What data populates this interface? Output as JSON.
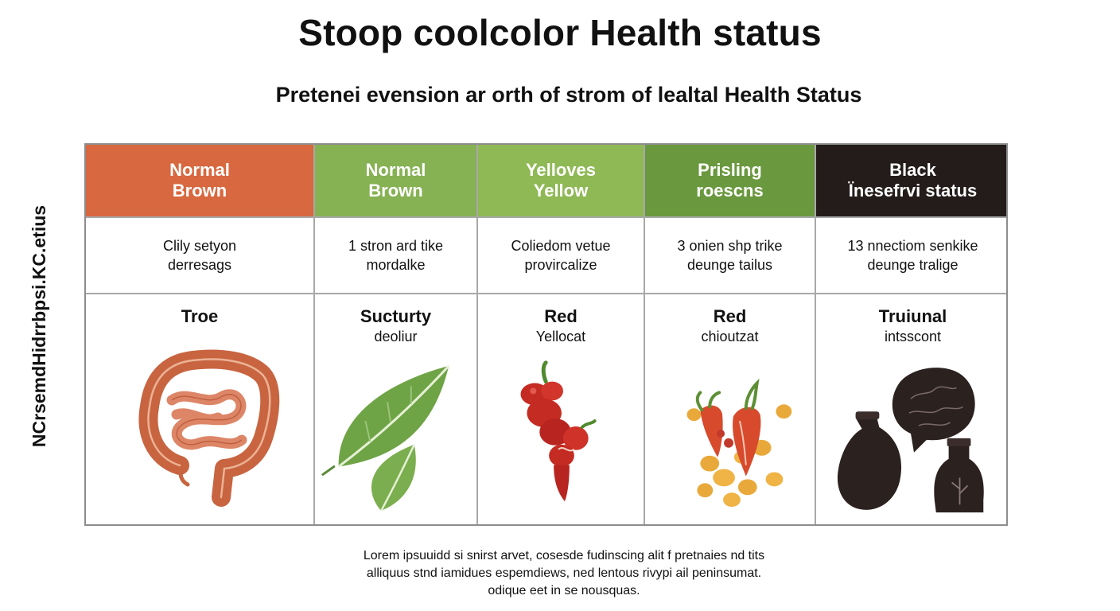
{
  "title": "Stoop coolcolor Health status",
  "subtitle": "Pretenei evension ar orth of strom of lealtal Health Status",
  "side_label": "NCrsemdHidrrbpsi.KC.etius",
  "columns": [
    {
      "header": [
        "Normal",
        "Brown"
      ],
      "header_color": "#d8683f",
      "description": [
        "Clily setyon",
        "derresags"
      ],
      "title_lines": [
        "Troe"
      ],
      "illustration": "intestine-icon"
    },
    {
      "header": [
        "Normal",
        "Brown"
      ],
      "header_color": "#86b253",
      "description": [
        "1 stron ard tike",
        "mordalke"
      ],
      "title_lines": [
        "Sucturty",
        "deoliur"
      ],
      "illustration": "leaf-icon"
    },
    {
      "header": [
        "Yelloves",
        "Yellow"
      ],
      "header_color": "#8fb955",
      "description": [
        "Coliedom vetue",
        "provircalize"
      ],
      "title_lines": [
        "Red",
        "Yellocat"
      ],
      "illustration": "red-pepper-icon"
    },
    {
      "header": [
        "Prisling",
        "roescns"
      ],
      "header_color": "#6a983e",
      "description": [
        "3 onien shp trike",
        "deunge tailus"
      ],
      "title_lines": [
        "Red",
        "chioutzat"
      ],
      "illustration": "vegetables-icon"
    },
    {
      "header": [
        "Black",
        "Ïnesefrvi status"
      ],
      "header_color": "#241c1b",
      "description": [
        "13 nnectiom senkike",
        "deunge tralige"
      ],
      "title_lines": [
        "Truiunal",
        "intsscont"
      ],
      "illustration": "dark-jars-icon"
    }
  ],
  "footer": [
    "Lorem ipsuuidd si snirst arvet, cosesde fudinscing alit f pretnaies nd tits",
    "alliquus stnd iamidues espemdiews, ned lentous rivypi ail peninsumat.",
    "odique eet in se nousquas."
  ]
}
